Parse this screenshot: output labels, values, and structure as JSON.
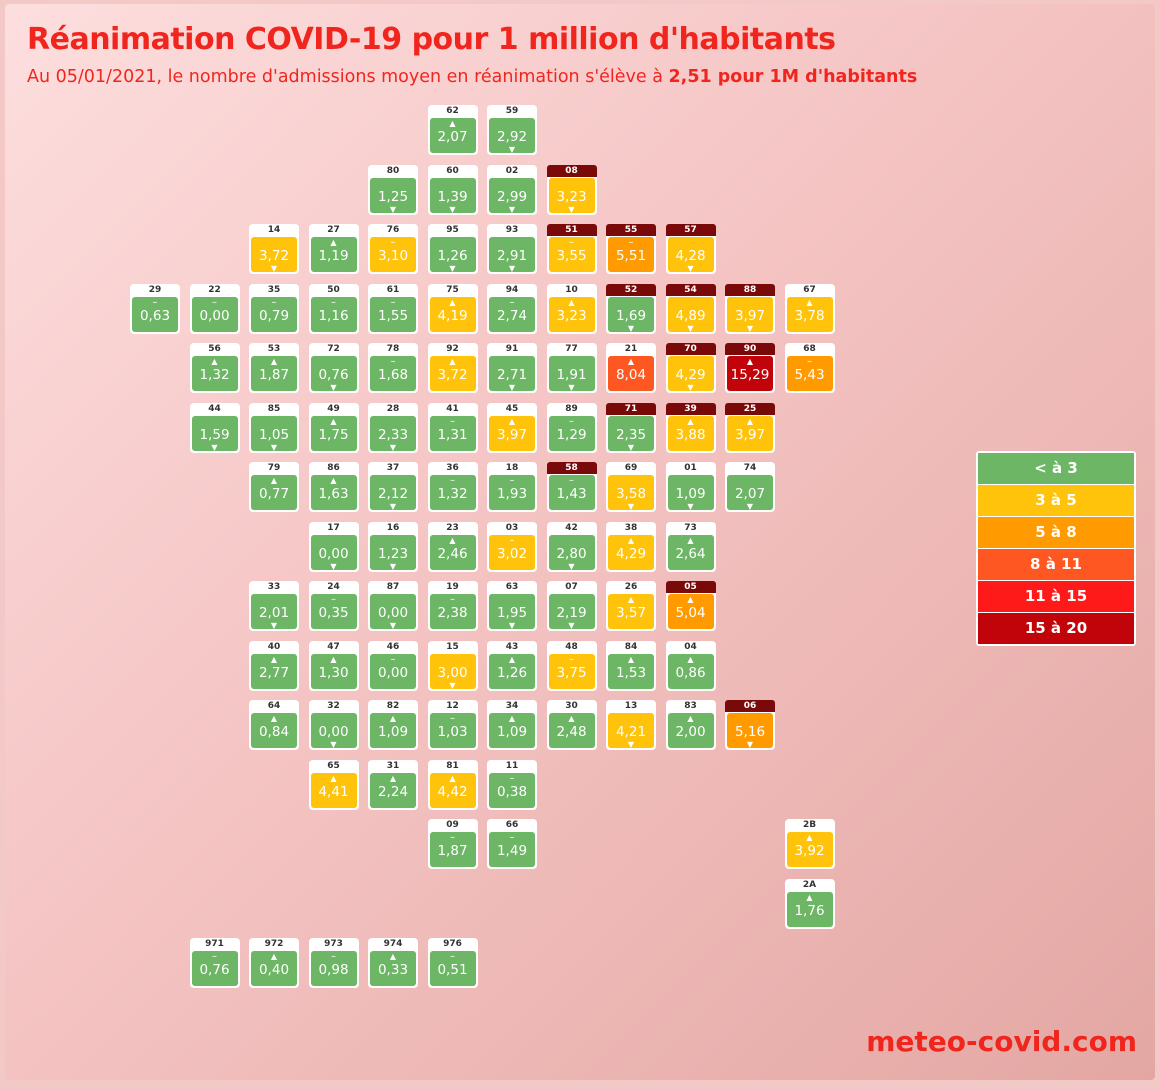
{
  "title": "Réanimation COVID-19 pour 1 million d'habitants",
  "subtitle": {
    "prefix": "Au 05/01/2021, le nombre d'admissions moyen en réanimation s'élève à ",
    "highlight": "2,51 pour 1M d'habitants"
  },
  "brand": "meteo-covid.com",
  "colors": {
    "green": "#6cb665",
    "yellow": "#fec30a",
    "orange": "#ff9a00",
    "orange_red": "#ff5722",
    "red": "#ff1a1a",
    "dark_red": "#c0040a"
  },
  "trend_symbols": {
    "up": "▲",
    "down": "▼",
    "flat": "–"
  },
  "legend": [
    {
      "label": "< à 3",
      "color": "#6cb665"
    },
    {
      "label": "3 à 5",
      "color": "#fec30a"
    },
    {
      "label": "5 à 8",
      "color": "#ff9a00"
    },
    {
      "label": "8 à 11",
      "color": "#ff5722"
    },
    {
      "label": "11 à 15",
      "color": "#ff1a1a"
    },
    {
      "label": "15 à 20",
      "color": "#c0040a"
    }
  ],
  "chart_data": {
    "type": "tile-map",
    "unit": "admissions en réanimation pour 1M d'habitants",
    "bins": [
      [
        0,
        3
      ],
      [
        3,
        5
      ],
      [
        5,
        8
      ],
      [
        8,
        11
      ],
      [
        11,
        15
      ],
      [
        15,
        20
      ]
    ],
    "departments": [
      {
        "code": "62",
        "value": 2.07,
        "trend": "up",
        "col": 7,
        "row": 0
      },
      {
        "code": "59",
        "value": 2.92,
        "trend": "down",
        "col": 8,
        "row": 0
      },
      {
        "code": "80",
        "value": 1.25,
        "trend": "down",
        "col": 6,
        "row": 1
      },
      {
        "code": "60",
        "value": 1.39,
        "trend": "down",
        "col": 7,
        "row": 1
      },
      {
        "code": "02",
        "value": 2.99,
        "trend": "down",
        "col": 8,
        "row": 1
      },
      {
        "code": "08",
        "value": 3.23,
        "trend": "down",
        "col": 9,
        "row": 1,
        "alert": true
      },
      {
        "code": "14",
        "value": 3.72,
        "trend": "down",
        "col": 4,
        "row": 2
      },
      {
        "code": "27",
        "value": 1.19,
        "trend": "up",
        "col": 5,
        "row": 2
      },
      {
        "code": "76",
        "value": 3.1,
        "trend": "flat",
        "col": 6,
        "row": 2
      },
      {
        "code": "95",
        "value": 1.26,
        "trend": "down",
        "col": 7,
        "row": 2
      },
      {
        "code": "93",
        "value": 2.91,
        "trend": "down",
        "col": 8,
        "row": 2
      },
      {
        "code": "51",
        "value": 3.55,
        "trend": "flat",
        "col": 9,
        "row": 2,
        "alert": true
      },
      {
        "code": "55",
        "value": 5.51,
        "trend": "flat",
        "col": 10,
        "row": 2,
        "alert": true
      },
      {
        "code": "57",
        "value": 4.28,
        "trend": "down",
        "col": 11,
        "row": 2,
        "alert": true
      },
      {
        "code": "29",
        "value": 0.63,
        "trend": "flat",
        "col": 2,
        "row": 3
      },
      {
        "code": "22",
        "value": 0.0,
        "trend": "flat",
        "col": 3,
        "row": 3
      },
      {
        "code": "35",
        "value": 0.79,
        "trend": "flat",
        "col": 4,
        "row": 3
      },
      {
        "code": "50",
        "value": 1.16,
        "trend": "flat",
        "col": 5,
        "row": 3
      },
      {
        "code": "61",
        "value": 1.55,
        "trend": "flat",
        "col": 6,
        "row": 3
      },
      {
        "code": "75",
        "value": 4.19,
        "trend": "up",
        "col": 7,
        "row": 3
      },
      {
        "code": "94",
        "value": 2.74,
        "trend": "flat",
        "col": 8,
        "row": 3
      },
      {
        "code": "10",
        "value": 3.23,
        "trend": "up",
        "col": 9,
        "row": 3
      },
      {
        "code": "52",
        "value": 1.69,
        "trend": "down",
        "col": 10,
        "row": 3,
        "alert": true
      },
      {
        "code": "54",
        "value": 4.89,
        "trend": "down",
        "col": 11,
        "row": 3,
        "alert": true
      },
      {
        "code": "88",
        "value": 3.97,
        "trend": "down",
        "col": 12,
        "row": 3,
        "alert": true
      },
      {
        "code": "67",
        "value": 3.78,
        "trend": "up",
        "col": 13,
        "row": 3
      },
      {
        "code": "56",
        "value": 1.32,
        "trend": "up",
        "col": 3,
        "row": 4
      },
      {
        "code": "53",
        "value": 1.87,
        "trend": "up",
        "col": 4,
        "row": 4
      },
      {
        "code": "72",
        "value": 0.76,
        "trend": "down",
        "col": 5,
        "row": 4
      },
      {
        "code": "78",
        "value": 1.68,
        "trend": "flat",
        "col": 6,
        "row": 4
      },
      {
        "code": "92",
        "value": 3.72,
        "trend": "up",
        "col": 7,
        "row": 4
      },
      {
        "code": "91",
        "value": 2.71,
        "trend": "down",
        "col": 8,
        "row": 4
      },
      {
        "code": "77",
        "value": 1.91,
        "trend": "down",
        "col": 9,
        "row": 4
      },
      {
        "code": "21",
        "value": 8.04,
        "trend": "up",
        "col": 10,
        "row": 4
      },
      {
        "code": "70",
        "value": 4.29,
        "trend": "down",
        "col": 11,
        "row": 4,
        "alert": true
      },
      {
        "code": "90",
        "value": 15.29,
        "trend": "up",
        "col": 12,
        "row": 4,
        "alert": true
      },
      {
        "code": "68",
        "value": 5.43,
        "trend": "flat",
        "col": 13,
        "row": 4
      },
      {
        "code": "44",
        "value": 1.59,
        "trend": "down",
        "col": 3,
        "row": 5
      },
      {
        "code": "85",
        "value": 1.05,
        "trend": "down",
        "col": 4,
        "row": 5
      },
      {
        "code": "49",
        "value": 1.75,
        "trend": "up",
        "col": 5,
        "row": 5
      },
      {
        "code": "28",
        "value": 2.33,
        "trend": "down",
        "col": 6,
        "row": 5
      },
      {
        "code": "41",
        "value": 1.31,
        "trend": "flat",
        "col": 7,
        "row": 5
      },
      {
        "code": "45",
        "value": 3.97,
        "trend": "up",
        "col": 8,
        "row": 5
      },
      {
        "code": "89",
        "value": 1.29,
        "trend": "flat",
        "col": 9,
        "row": 5
      },
      {
        "code": "71",
        "value": 2.35,
        "trend": "down",
        "col": 10,
        "row": 5,
        "alert": true
      },
      {
        "code": "39",
        "value": 3.88,
        "trend": "up",
        "col": 11,
        "row": 5,
        "alert": true
      },
      {
        "code": "25",
        "value": 3.97,
        "trend": "up",
        "col": 12,
        "row": 5,
        "alert": true
      },
      {
        "code": "79",
        "value": 0.77,
        "trend": "up",
        "col": 4,
        "row": 6
      },
      {
        "code": "86",
        "value": 1.63,
        "trend": "up",
        "col": 5,
        "row": 6
      },
      {
        "code": "37",
        "value": 2.12,
        "trend": "down",
        "col": 6,
        "row": 6
      },
      {
        "code": "36",
        "value": 1.32,
        "trend": "flat",
        "col": 7,
        "row": 6
      },
      {
        "code": "18",
        "value": 1.93,
        "trend": "flat",
        "col": 8,
        "row": 6
      },
      {
        "code": "58",
        "value": 1.43,
        "trend": "flat",
        "col": 9,
        "row": 6,
        "alert": true
      },
      {
        "code": "69",
        "value": 3.58,
        "trend": "down",
        "col": 10,
        "row": 6
      },
      {
        "code": "01",
        "value": 1.09,
        "trend": "down",
        "col": 11,
        "row": 6
      },
      {
        "code": "74",
        "value": 2.07,
        "trend": "down",
        "col": 12,
        "row": 6
      },
      {
        "code": "17",
        "value": 0.0,
        "trend": "down",
        "col": 5,
        "row": 7
      },
      {
        "code": "16",
        "value": 1.23,
        "trend": "down",
        "col": 6,
        "row": 7
      },
      {
        "code": "23",
        "value": 2.46,
        "trend": "up",
        "col": 7,
        "row": 7
      },
      {
        "code": "03",
        "value": 3.02,
        "trend": "flat",
        "col": 8,
        "row": 7
      },
      {
        "code": "42",
        "value": 2.8,
        "trend": "down",
        "col": 9,
        "row": 7
      },
      {
        "code": "38",
        "value": 4.29,
        "trend": "up",
        "col": 10,
        "row": 7
      },
      {
        "code": "73",
        "value": 2.64,
        "trend": "up",
        "col": 11,
        "row": 7
      },
      {
        "code": "33",
        "value": 2.01,
        "trend": "down",
        "col": 4,
        "row": 8
      },
      {
        "code": "24",
        "value": 0.35,
        "trend": "flat",
        "col": 5,
        "row": 8
      },
      {
        "code": "87",
        "value": 0.0,
        "trend": "down",
        "col": 6,
        "row": 8
      },
      {
        "code": "19",
        "value": 2.38,
        "trend": "flat",
        "col": 7,
        "row": 8
      },
      {
        "code": "63",
        "value": 1.95,
        "trend": "down",
        "col": 8,
        "row": 8
      },
      {
        "code": "07",
        "value": 2.19,
        "trend": "down",
        "col": 9,
        "row": 8
      },
      {
        "code": "26",
        "value": 3.57,
        "trend": "up",
        "col": 10,
        "row": 8
      },
      {
        "code": "05",
        "value": 5.04,
        "trend": "up",
        "col": 11,
        "row": 8,
        "alert": true
      },
      {
        "code": "40",
        "value": 2.77,
        "trend": "up",
        "col": 4,
        "row": 9
      },
      {
        "code": "47",
        "value": 1.3,
        "trend": "up",
        "col": 5,
        "row": 9
      },
      {
        "code": "46",
        "value": 0.0,
        "trend": "flat",
        "col": 6,
        "row": 9
      },
      {
        "code": "15",
        "value": 3.0,
        "trend": "down",
        "col": 7,
        "row": 9
      },
      {
        "code": "43",
        "value": 1.26,
        "trend": "up",
        "col": 8,
        "row": 9
      },
      {
        "code": "48",
        "value": 3.75,
        "trend": "flat",
        "col": 9,
        "row": 9
      },
      {
        "code": "84",
        "value": 1.53,
        "trend": "up",
        "col": 10,
        "row": 9
      },
      {
        "code": "04",
        "value": 0.86,
        "trend": "up",
        "col": 11,
        "row": 9
      },
      {
        "code": "64",
        "value": 0.84,
        "trend": "up",
        "col": 4,
        "row": 10
      },
      {
        "code": "32",
        "value": 0.0,
        "trend": "down",
        "col": 5,
        "row": 10
      },
      {
        "code": "82",
        "value": 1.09,
        "trend": "up",
        "col": 6,
        "row": 10
      },
      {
        "code": "12",
        "value": 1.03,
        "trend": "flat",
        "col": 7,
        "row": 10
      },
      {
        "code": "34",
        "value": 1.09,
        "trend": "up",
        "col": 8,
        "row": 10
      },
      {
        "code": "30",
        "value": 2.48,
        "trend": "up",
        "col": 9,
        "row": 10
      },
      {
        "code": "13",
        "value": 4.21,
        "trend": "down",
        "col": 10,
        "row": 10
      },
      {
        "code": "83",
        "value": 2.0,
        "trend": "up",
        "col": 11,
        "row": 10
      },
      {
        "code": "06",
        "value": 5.16,
        "trend": "down",
        "col": 12,
        "row": 10,
        "alert": true
      },
      {
        "code": "65",
        "value": 4.41,
        "trend": "up",
        "col": 5,
        "row": 11
      },
      {
        "code": "31",
        "value": 2.24,
        "trend": "up",
        "col": 6,
        "row": 11
      },
      {
        "code": "81",
        "value": 4.42,
        "trend": "up",
        "col": 7,
        "row": 11
      },
      {
        "code": "11",
        "value": 0.38,
        "trend": "flat",
        "col": 8,
        "row": 11
      },
      {
        "code": "09",
        "value": 1.87,
        "trend": "flat",
        "col": 7,
        "row": 12
      },
      {
        "code": "66",
        "value": 1.49,
        "trend": "flat",
        "col": 8,
        "row": 12
      },
      {
        "code": "2B",
        "value": 3.92,
        "trend": "up",
        "col": 13,
        "row": 12
      },
      {
        "code": "2A",
        "value": 1.76,
        "trend": "up",
        "col": 13,
        "row": 13
      },
      {
        "code": "971",
        "value": 0.76,
        "trend": "flat",
        "col": 3,
        "row": 14
      },
      {
        "code": "972",
        "value": 0.4,
        "trend": "up",
        "col": 4,
        "row": 14
      },
      {
        "code": "973",
        "value": 0.98,
        "trend": "flat",
        "col": 5,
        "row": 14
      },
      {
        "code": "974",
        "value": 0.33,
        "trend": "up",
        "col": 6,
        "row": 14
      },
      {
        "code": "976",
        "value": 0.51,
        "trend": "flat",
        "col": 7,
        "row": 14
      }
    ]
  }
}
